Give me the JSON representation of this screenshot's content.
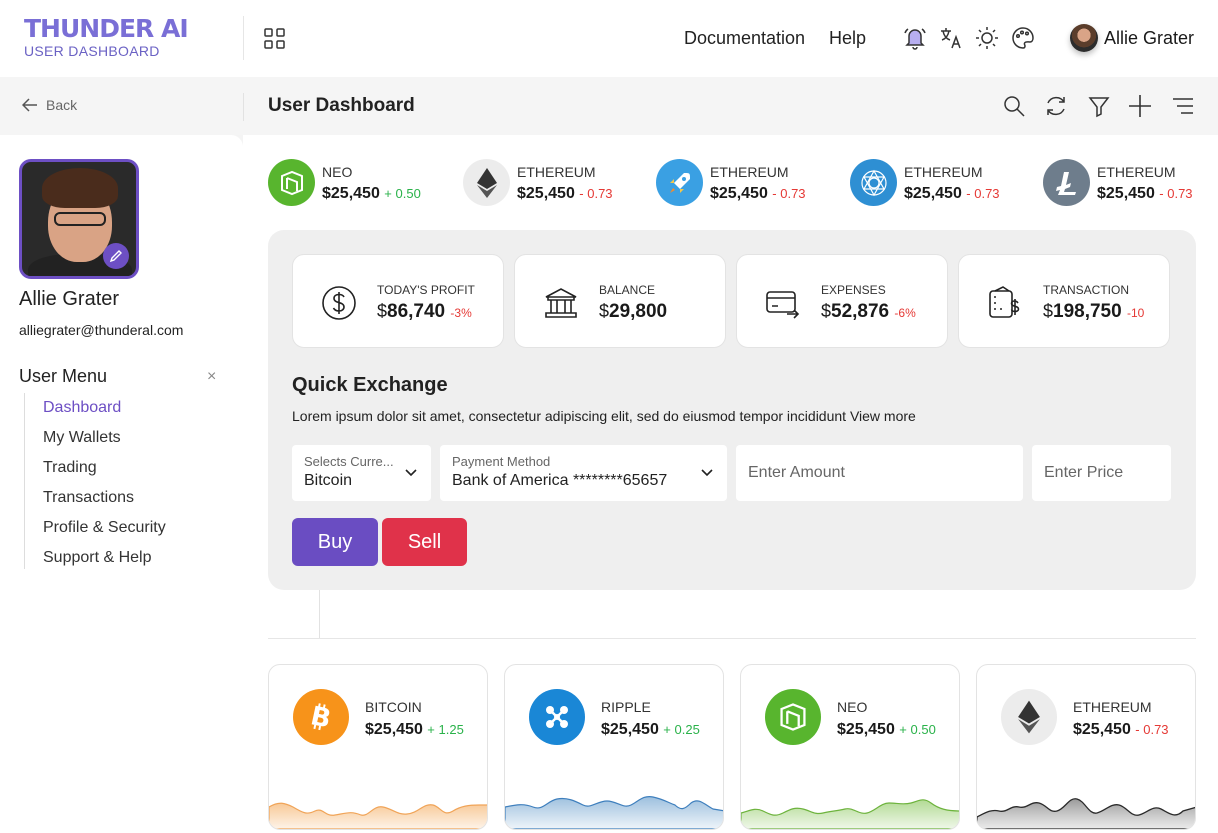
{
  "brand": {
    "title": "THUNDER AI",
    "subtitle": "USER DASHBOARD"
  },
  "topnav": {
    "documentation": "Documentation",
    "help": "Help"
  },
  "user": {
    "name": "Allie Grater",
    "email": "alliegrater@thunderal.com"
  },
  "subbar": {
    "back": "Back",
    "title": "User Dashboard"
  },
  "menu": {
    "title": "User Menu",
    "close": "×",
    "items": [
      "Dashboard",
      "My Wallets",
      "Trading",
      "Transactions",
      "Profile & Security",
      "Support & Help"
    ]
  },
  "tickers": [
    {
      "name": "NEO",
      "price": "$25,450",
      "change": "+ 0.50",
      "direction": "up",
      "icon": "neo-icon",
      "color": "#58b52e"
    },
    {
      "name": "ETHEREUM",
      "price": "$25,450",
      "change": "- 0.73",
      "direction": "down",
      "icon": "ethereum-icon",
      "color": "#ececec"
    },
    {
      "name": "ETHEREUM",
      "price": "$25,450",
      "change": "- 0.73",
      "direction": "down",
      "icon": "rocket-icon",
      "color": "#3aa0e3"
    },
    {
      "name": "ETHEREUM",
      "price": "$25,450",
      "change": "- 0.73",
      "direction": "down",
      "icon": "quant-icon",
      "color": "#2e8fd3"
    },
    {
      "name": "ETHEREUM",
      "price": "$25,450",
      "change": "- 0.73",
      "direction": "down",
      "icon": "litecoin-icon",
      "color": "#6e7d8c"
    }
  ],
  "stats": [
    {
      "label": "TODAY'S PROFIT",
      "currency": "$",
      "value": "86,740",
      "change": "-3%",
      "icon": "dollar-icon"
    },
    {
      "label": "BALANCE",
      "currency": "$",
      "value": "29,800",
      "change": "",
      "icon": "bank-icon"
    },
    {
      "label": "EXPENSES",
      "currency": "$",
      "value": "52,876",
      "change": "-6%",
      "icon": "card-icon"
    },
    {
      "label": "TRANSACTION",
      "currency": "$",
      "value": "198,750",
      "change": "-10",
      "icon": "wallet-icon"
    }
  ],
  "quick_exchange": {
    "title": "Quick Exchange",
    "description": "Lorem ipsum dolor sit amet, consectetur adipiscing elit, sed do eiusmod tempor incididunt View more",
    "currency_label": "Selects Curre...",
    "currency_value": "Bitcoin",
    "payment_label": "Payment Method",
    "payment_value": "Bank of America ********65657",
    "amount_placeholder": "Enter Amount",
    "price_placeholder": "Enter Price",
    "buy": "Buy",
    "sell": "Sell"
  },
  "colors": {
    "accent": "#6a4dc2",
    "sell": "#e0324a",
    "up": "#2ab24a",
    "down": "#e53935"
  },
  "cards": [
    {
      "name": "BITCOIN",
      "price": "$25,450",
      "change": "+ 1.25",
      "direction": "up",
      "icon": "bitcoin-icon",
      "color": "#f7931a",
      "spark_color": "#f5b26b"
    },
    {
      "name": "RIPPLE",
      "price": "$25,450",
      "change": "+ 0.25",
      "direction": "up",
      "icon": "ripple-icon",
      "color": "#1a87d6",
      "spark_color": "#5b95c8"
    },
    {
      "name": "NEO",
      "price": "$25,450",
      "change": "+ 0.50",
      "direction": "up",
      "icon": "neo-icon",
      "color": "#58b52e",
      "spark_color": "#7fc14d"
    },
    {
      "name": "ETHEREUM",
      "price": "$25,450",
      "change": "- 0.73",
      "direction": "down",
      "icon": "ethereum-icon",
      "color": "#ececec",
      "spark_color": "#444444"
    }
  ]
}
